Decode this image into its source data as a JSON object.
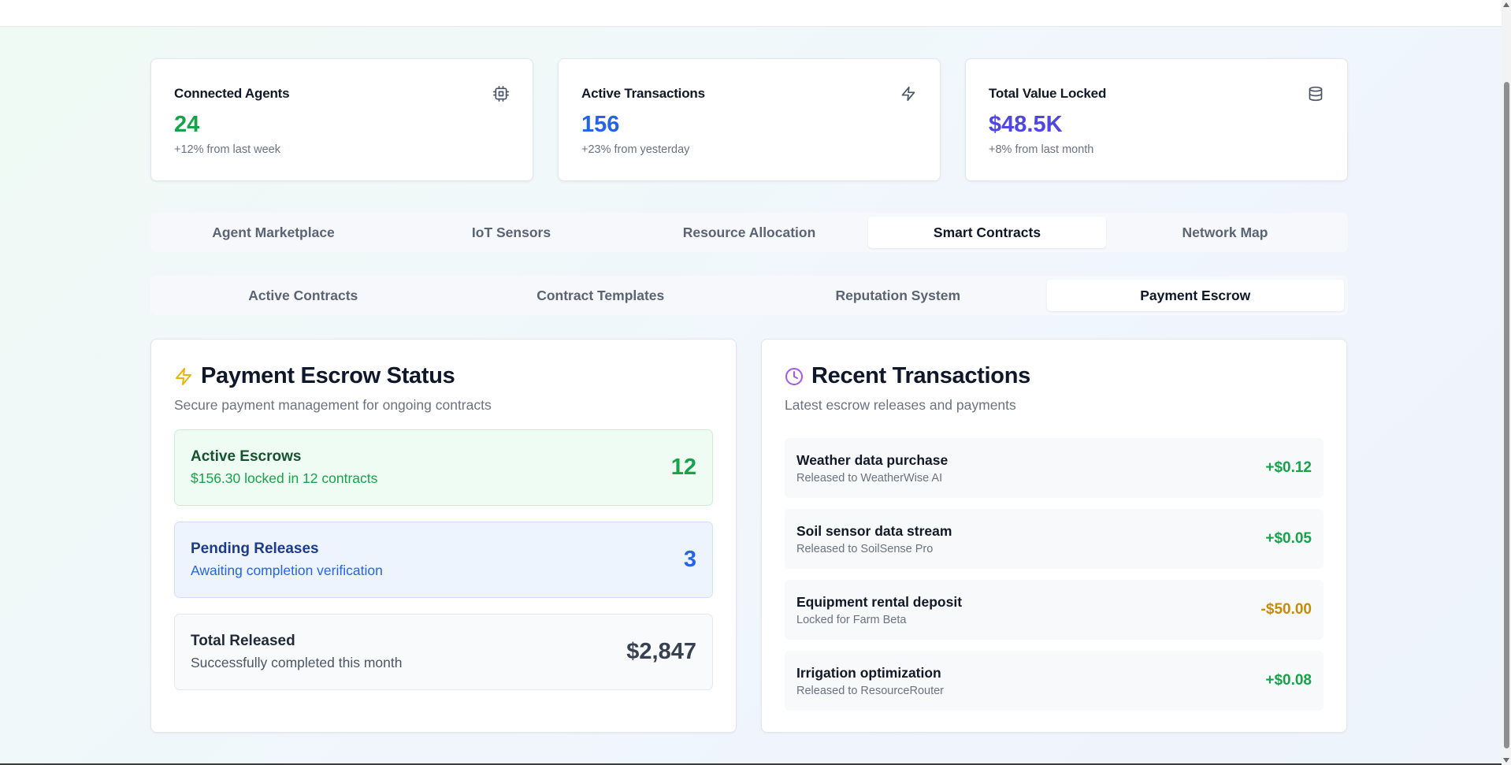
{
  "stats": [
    {
      "title": "Connected Agents",
      "value": "24",
      "sub": "+12% from last week",
      "icon": "cpu-icon",
      "color": "#16a34a"
    },
    {
      "title": "Active Transactions",
      "value": "156",
      "sub": "+23% from yesterday",
      "icon": "zap-icon",
      "color": "#2563eb"
    },
    {
      "title": "Total Value Locked",
      "value": "$48.5K",
      "sub": "+8% from last month",
      "icon": "database-icon",
      "color": "#4f46e5"
    }
  ],
  "main_tabs": [
    {
      "label": "Agent Marketplace",
      "active": false
    },
    {
      "label": "IoT Sensors",
      "active": false
    },
    {
      "label": "Resource Allocation",
      "active": false
    },
    {
      "label": "Smart Contracts",
      "active": true
    },
    {
      "label": "Network Map",
      "active": false
    }
  ],
  "sub_tabs": [
    {
      "label": "Active Contracts",
      "active": false
    },
    {
      "label": "Contract Templates",
      "active": false
    },
    {
      "label": "Reputation System",
      "active": false
    },
    {
      "label": "Payment Escrow",
      "active": true
    }
  ],
  "escrow_panel": {
    "title": "Payment Escrow Status",
    "description": "Secure payment management for ongoing contracts",
    "icon": "zap-icon",
    "boxes": [
      {
        "title": "Active Escrows",
        "sub": "$156.30 locked in 12 contracts",
        "value": "12",
        "tone": "green"
      },
      {
        "title": "Pending Releases",
        "sub": "Awaiting completion verification",
        "value": "3",
        "tone": "blue"
      },
      {
        "title": "Total Released",
        "sub": "Successfully completed this month",
        "value": "$2,847",
        "tone": "gray"
      }
    ]
  },
  "transactions_panel": {
    "title": "Recent Transactions",
    "description": "Latest escrow releases and payments",
    "icon": "clock-icon",
    "items": [
      {
        "title": "Weather data purchase",
        "sub": "Released to WeatherWise AI",
        "amount": "+$0.12",
        "color": "#16a34a"
      },
      {
        "title": "Soil sensor data stream",
        "sub": "Released to SoilSense Pro",
        "amount": "+$0.05",
        "color": "#16a34a"
      },
      {
        "title": "Equipment rental deposit",
        "sub": "Locked for Farm Beta",
        "amount": "-$50.00",
        "color": "#ca8a04"
      },
      {
        "title": "Irrigation optimization",
        "sub": "Released to ResourceRouter",
        "amount": "+$0.08",
        "color": "#16a34a"
      }
    ]
  },
  "colors": {
    "zap_yellow": "#eab308",
    "clock_purple": "#a855f7",
    "icon_gray": "#4b5563"
  }
}
